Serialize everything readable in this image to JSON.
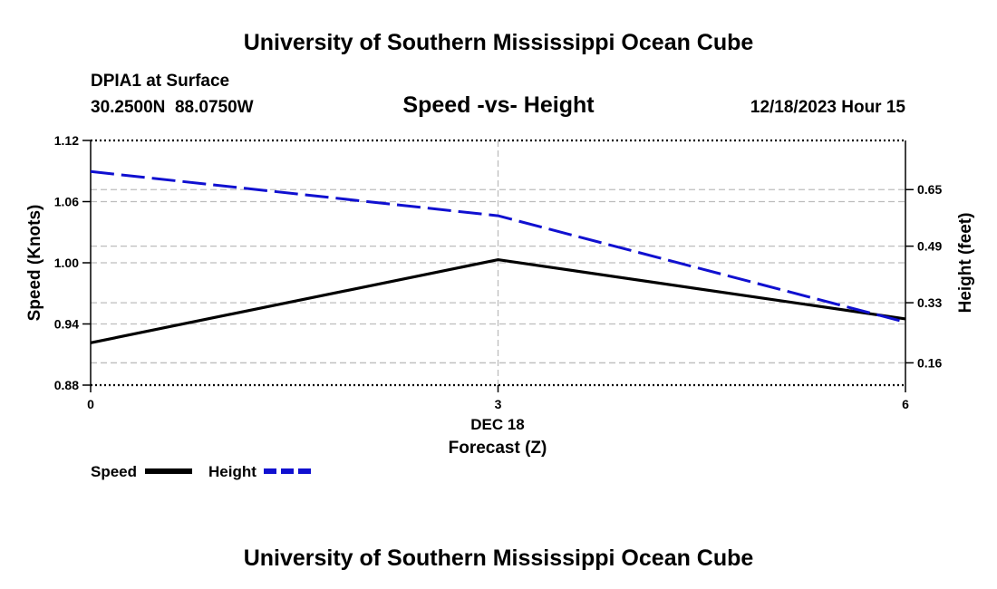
{
  "header": {
    "title": "University of Southern Mississippi Ocean Cube",
    "station": "DPIA1 at Surface",
    "coords": "30.2500N  88.0750W",
    "datetime": "12/18/2023 Hour 15",
    "footer_title": "University of Southern Mississippi Ocean Cube"
  },
  "chart_data": {
    "type": "line",
    "title": "Speed -vs- Height",
    "xlabel": "Forecast (Z)",
    "x_date_label": "DEC 18",
    "x": [
      0,
      3,
      6
    ],
    "x_ticks": [
      "0",
      "3",
      "6"
    ],
    "xlim": [
      0,
      6
    ],
    "ylabel_left": "Speed (Knots)",
    "ylim_left": [
      0.88,
      1.12
    ],
    "yticks_left": [
      "0.88",
      "0.94",
      "1.00",
      "1.06",
      "1.12"
    ],
    "ylabel_right": "Height (feet)",
    "ylim_right": [
      0.097,
      0.789
    ],
    "yticks_right": [
      "0.16",
      "0.33",
      "0.49",
      "0.65"
    ],
    "grid": true,
    "legend": "bottom-left",
    "series": [
      {
        "name": "Speed",
        "axis": "left",
        "color": "#000000",
        "dash": "solid",
        "values": [
          0.9215,
          1.003,
          0.945
        ]
      },
      {
        "name": "Height",
        "axis": "right",
        "color": "#1010d0",
        "dash": "dashed",
        "values": [
          0.701,
          0.576,
          0.275
        ]
      }
    ]
  }
}
